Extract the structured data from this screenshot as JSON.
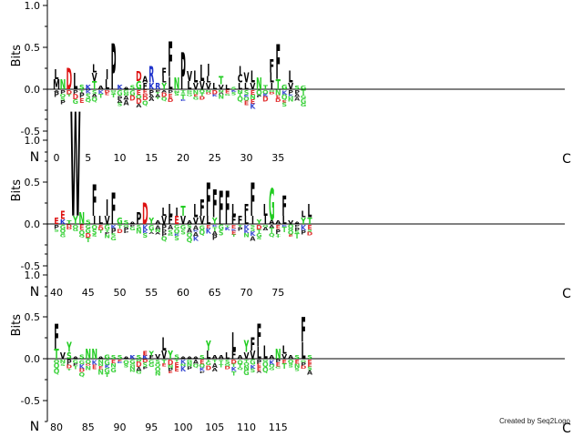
{
  "chart_data": {
    "type": "sequence-logo",
    "ylabel": "Bits",
    "ylim": [
      -0.75,
      1.4
    ],
    "yticks": [
      -0.5,
      0.0,
      0.5,
      1.0
    ],
    "ytick_labels": [
      "-0.5",
      "0.0",
      "0.5",
      "1.0"
    ],
    "start_label": "N",
    "end_label": "C",
    "colors": {
      "hydrophobic": "#000000",
      "polar": "#22cc22",
      "basic": "#1f33cc",
      "acidic": "#dd1111",
      "neutral": "#a020a0"
    },
    "rows": [
      {
        "start": 0,
        "xtick_labels": [
          "0",
          "5",
          "10",
          "15",
          "20",
          "25",
          "30",
          "35"
        ],
        "positions": [
          [
            [
              "M",
              0.12
            ],
            [
              "L",
              0.12
            ]
          ],
          [
            [
              "N",
              0.12
            ]
          ],
          [
            [
              "D",
              0.26
            ]
          ],
          [
            [
              "L",
              0.2
            ]
          ],
          [
            [
              "S",
              0.06
            ]
          ],
          [
            [
              "K",
              0.06
            ]
          ],
          [
            [
              "T",
              0.1
            ],
            [
              "V",
              0.1
            ],
            [
              "L",
              0.1
            ]
          ],
          [
            [
              "A",
              0.04
            ]
          ],
          [
            [
              "L",
              0.12
            ],
            [
              "I",
              0.12
            ]
          ],
          [
            [
              "P",
              0.55
            ]
          ],
          [
            [
              "K",
              0.06
            ]
          ],
          [
            [
              "A",
              0.03
            ]
          ],
          [
            [
              "S",
              0.05
            ]
          ],
          [
            [
              "D",
              0.12
            ],
            [
              "G",
              0.1
            ]
          ],
          [
            [
              "F",
              0.08
            ],
            [
              "A",
              0.08
            ]
          ],
          [
            [
              "R",
              0.2
            ],
            [
              "K",
              0.08
            ]
          ],
          [
            [
              "R",
              0.08
            ]
          ],
          [
            [
              "F",
              0.1
            ],
            [
              "Y",
              0.08
            ],
            [
              "L",
              0.08
            ]
          ],
          [
            [
              "F",
              0.42
            ],
            [
              "L",
              0.15
            ]
          ],
          [
            [
              "N",
              0.14
            ]
          ],
          [
            [
              "P",
              0.45
            ]
          ],
          [
            [
              "V",
              0.12
            ],
            [
              "L",
              0.1
            ]
          ],
          [
            [
              "L",
              0.14
            ],
            [
              "V",
              0.08
            ]
          ],
          [
            [
              "L",
              0.2
            ],
            [
              "V",
              0.1
            ]
          ],
          [
            [
              "I",
              0.15
            ],
            [
              "V",
              0.08
            ],
            [
              "L",
              0.08
            ]
          ],
          [
            [
              "L",
              0.08
            ]
          ],
          [
            [
              "T",
              0.1
            ],
            [
              "V",
              0.06
            ]
          ],
          [
            [
              "L",
              0.06
            ]
          ],
          [
            [
              "S",
              0.03
            ]
          ],
          [
            [
              "C",
              0.1
            ],
            [
              "I",
              0.1
            ],
            [
              "L",
              0.08
            ]
          ],
          [
            [
              "V",
              0.12
            ],
            [
              "L",
              0.08
            ]
          ],
          [
            [
              "L",
              0.14
            ],
            [
              "V",
              0.08
            ]
          ],
          [
            [
              "N",
              0.14
            ]
          ],
          [
            [
              "T",
              0.05
            ]
          ],
          [
            [
              "F",
              0.16
            ],
            [
              "L",
              0.12
            ],
            [
              "I",
              0.08
            ]
          ],
          [
            [
              "F",
              0.42
            ],
            [
              "T",
              0.12
            ]
          ],
          [
            [
              "G",
              0.06
            ]
          ],
          [
            [
              "L",
              0.14
            ],
            [
              "V",
              0.08
            ]
          ],
          [
            [
              "S",
              0.04
            ]
          ],
          [
            [
              "G",
              0.04
            ]
          ]
        ]
      },
      {
        "start": 40,
        "xtick_labels": [
          "40",
          "45",
          "50",
          "55",
          "60",
          "65",
          "70",
          "75"
        ],
        "positions": [
          [
            [
              "E",
              0.08
            ]
          ],
          [
            [
              "E",
              0.1
            ],
            [
              "K",
              0.06
            ]
          ],
          [
            [
              "T",
              0.04
            ]
          ],
          [
            [
              "W",
              1.26
            ],
            [
              "Y",
              0.1
            ]
          ],
          [
            [
              "N",
              0.14
            ]
          ],
          [
            [
              "S",
              0.05
            ]
          ],
          [
            [
              "F",
              0.38
            ],
            [
              "I",
              0.1
            ]
          ],
          [
            [
              "L",
              0.1
            ]
          ],
          [
            [
              "I",
              0.2
            ],
            [
              "V",
              0.1
            ]
          ],
          [
            [
              "F",
              0.38
            ]
          ],
          [
            [
              "G",
              0.08
            ]
          ],
          [
            [
              "S",
              0.04
            ]
          ],
          [
            [
              "A",
              0.03
            ]
          ],
          [
            [
              "P",
              0.14
            ]
          ],
          [
            [
              "D",
              0.26
            ]
          ],
          [
            [
              "Y",
              0.08
            ]
          ],
          [
            [
              "A",
              0.04
            ]
          ],
          [
            [
              "V",
              0.1
            ],
            [
              "L",
              0.1
            ]
          ],
          [
            [
              "L",
              0.14
            ],
            [
              "F",
              0.1
            ]
          ],
          [
            [
              "E",
              0.1
            ],
            [
              "I",
              0.1
            ]
          ],
          [
            [
              "T",
              0.12
            ],
            [
              "V",
              0.1
            ]
          ],
          [
            [
              "A",
              0.04
            ]
          ],
          [
            [
              "L",
              0.16
            ],
            [
              "V",
              0.08
            ]
          ],
          [
            [
              "F",
              0.2
            ],
            [
              "V",
              0.1
            ]
          ],
          [
            [
              "F",
              0.4
            ],
            [
              "L",
              0.1
            ]
          ],
          [
            [
              "F",
              0.34
            ],
            [
              "Y",
              0.08
            ]
          ],
          [
            [
              "F",
              0.4
            ]
          ],
          [
            [
              "F",
              0.4
            ]
          ],
          [
            [
              "L",
              0.14
            ],
            [
              "F",
              0.1
            ]
          ],
          [
            [
              "F",
              0.1
            ]
          ],
          [
            [
              "F",
              0.14
            ],
            [
              "L",
              0.1
            ]
          ],
          [
            [
              "F",
              0.4
            ],
            [
              "I",
              0.1
            ]
          ],
          [
            [
              "Y",
              0.06
            ]
          ],
          [
            [
              "L",
              0.14
            ],
            [
              "I",
              0.1
            ]
          ],
          [
            [
              "G",
              0.38
            ],
            [
              "A",
              0.05
            ]
          ],
          [
            [
              "A",
              0.04
            ]
          ],
          [
            [
              "F",
              0.24
            ],
            [
              "L",
              0.1
            ]
          ],
          [
            [
              "V",
              0.04
            ]
          ],
          [
            [
              "A",
              0.03
            ]
          ],
          [
            [
              "Y",
              0.08
            ],
            [
              "L",
              0.08
            ]
          ],
          [
            [
              "L",
              0.16
            ],
            [
              "T",
              0.08
            ]
          ]
        ]
      },
      {
        "start": 80,
        "xtick_labels": [
          "80",
          "85",
          "90",
          "95",
          "100",
          "105",
          "110",
          "115"
        ],
        "positions": [
          [
            [
              "F",
              0.3
            ],
            [
              "T",
              0.12
            ]
          ],
          [
            [
              "V",
              0.08
            ]
          ],
          [
            [
              "Y",
              0.12
            ],
            [
              "S",
              0.08
            ]
          ],
          [
            [
              "A",
              0.03
            ]
          ],
          [
            [
              "S",
              0.05
            ]
          ],
          [
            [
              "N",
              0.12
            ]
          ],
          [
            [
              "N",
              0.12
            ]
          ],
          [
            [
              "A",
              0.03
            ]
          ],
          [
            [
              "G",
              0.05
            ]
          ],
          [
            [
              "S",
              0.04
            ]
          ],
          [
            [
              "S",
              0.04
            ]
          ],
          [
            [
              "A",
              0.03
            ]
          ],
          [
            [
              "K",
              0.04
            ]
          ],
          [
            [
              "S",
              0.04
            ]
          ],
          [
            [
              "E",
              0.06
            ],
            [
              "K",
              0.04
            ]
          ],
          [
            [
              "Y",
              0.06
            ],
            [
              "F",
              0.04
            ]
          ],
          [
            [
              "V",
              0.06
            ]
          ],
          [
            [
              "L",
              0.16
            ],
            [
              "V",
              0.1
            ]
          ],
          [
            [
              "Y",
              0.1
            ]
          ],
          [
            [
              "S",
              0.05
            ]
          ],
          [
            [
              "A",
              0.03
            ]
          ],
          [
            [
              "A",
              0.03
            ]
          ],
          [
            [
              "A",
              0.03
            ]
          ],
          [
            [
              "S",
              0.04
            ]
          ],
          [
            [
              "Y",
              0.12
            ],
            [
              "L",
              0.1
            ]
          ],
          [
            [
              "A",
              0.04
            ]
          ],
          [
            [
              "A",
              0.04
            ]
          ],
          [
            [
              "L",
              0.08
            ]
          ],
          [
            [
              "L",
              0.22
            ],
            [
              "F",
              0.1
            ]
          ],
          [
            [
              "A",
              0.04
            ]
          ],
          [
            [
              "Y",
              0.14
            ],
            [
              "V",
              0.08
            ]
          ],
          [
            [
              "F",
              0.16
            ],
            [
              "V",
              0.1
            ]
          ],
          [
            [
              "F",
              0.28
            ],
            [
              "L",
              0.14
            ]
          ],
          [
            [
              "L",
              0.16
            ]
          ],
          [
            [
              "A",
              0.04
            ]
          ],
          [
            [
              "N",
              0.12
            ]
          ],
          [
            [
              "L",
              0.1
            ],
            [
              "V",
              0.06
            ]
          ],
          [
            [
              "A",
              0.04
            ]
          ],
          [
            [
              "S",
              0.04
            ]
          ],
          [
            [
              "L",
              0.2
            ],
            [
              "F",
              0.3
            ]
          ],
          [
            [
              "S",
              0.04
            ]
          ]
        ]
      }
    ],
    "footer": "Created by Seq2Logo"
  }
}
